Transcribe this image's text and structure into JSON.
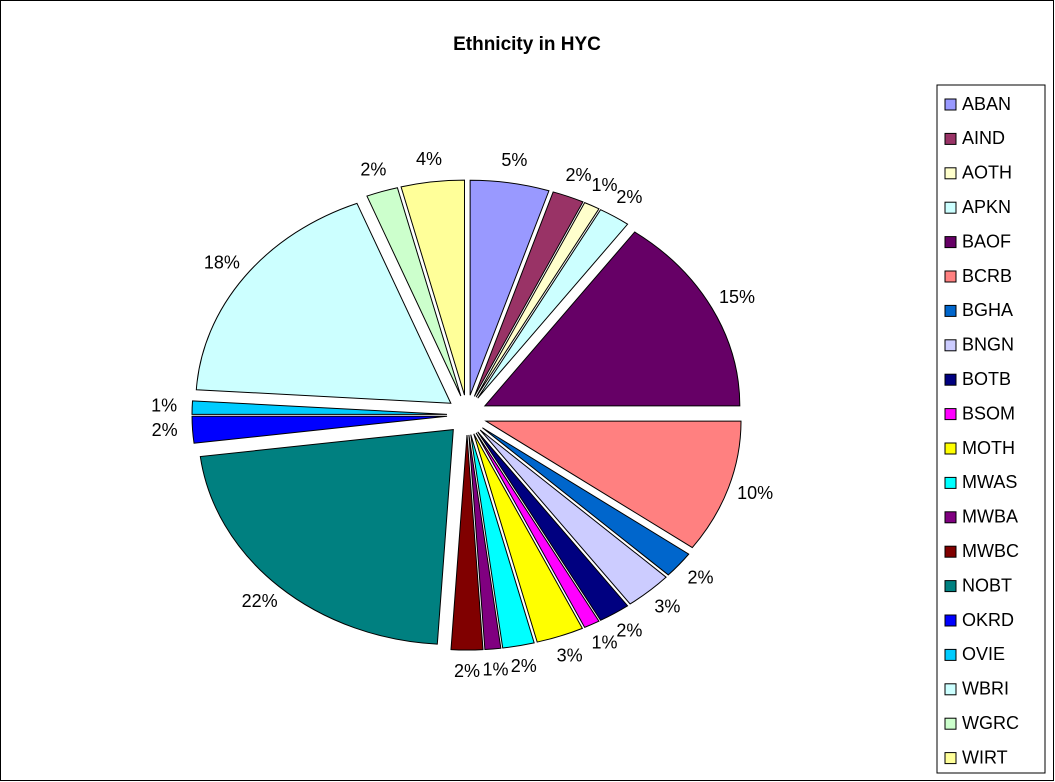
{
  "chart_data": {
    "type": "pie",
    "title": "Ethnicity in HYC",
    "categories": [
      "ABAN",
      "AIND",
      "AOTH",
      "APKN",
      "BAOF",
      "BCRB",
      "BGHA",
      "BNGN",
      "BOTB",
      "BSOM",
      "MOTH",
      "MWAS",
      "MWBA",
      "MWBC",
      "NOBT",
      "OKRD",
      "OVIE",
      "WBRI",
      "WGRC",
      "WIRT"
    ],
    "values": [
      5,
      2,
      1,
      2,
      15,
      10,
      2,
      3,
      2,
      1,
      3,
      2,
      1,
      2,
      22,
      2,
      1,
      18,
      2,
      4
    ],
    "value_labels": [
      "5%",
      "2%",
      "1%",
      "2%",
      "15%",
      "10%",
      "2%",
      "3%",
      "2%",
      "1%",
      "3%",
      "2%",
      "1%",
      "2%",
      "22%",
      "2%",
      "1%",
      "18%",
      "2%",
      "4%"
    ],
    "colors": [
      "#9999ff",
      "#993366",
      "#ffffcc",
      "#ccffff",
      "#660066",
      "#ff8080",
      "#0066cc",
      "#ccccff",
      "#000080",
      "#ff00ff",
      "#ffff00",
      "#00ffff",
      "#800080",
      "#800000",
      "#008080",
      "#0000ff",
      "#00ccff",
      "#ccffff",
      "#ccffcc",
      "#ffff99"
    ],
    "legend": "right"
  }
}
